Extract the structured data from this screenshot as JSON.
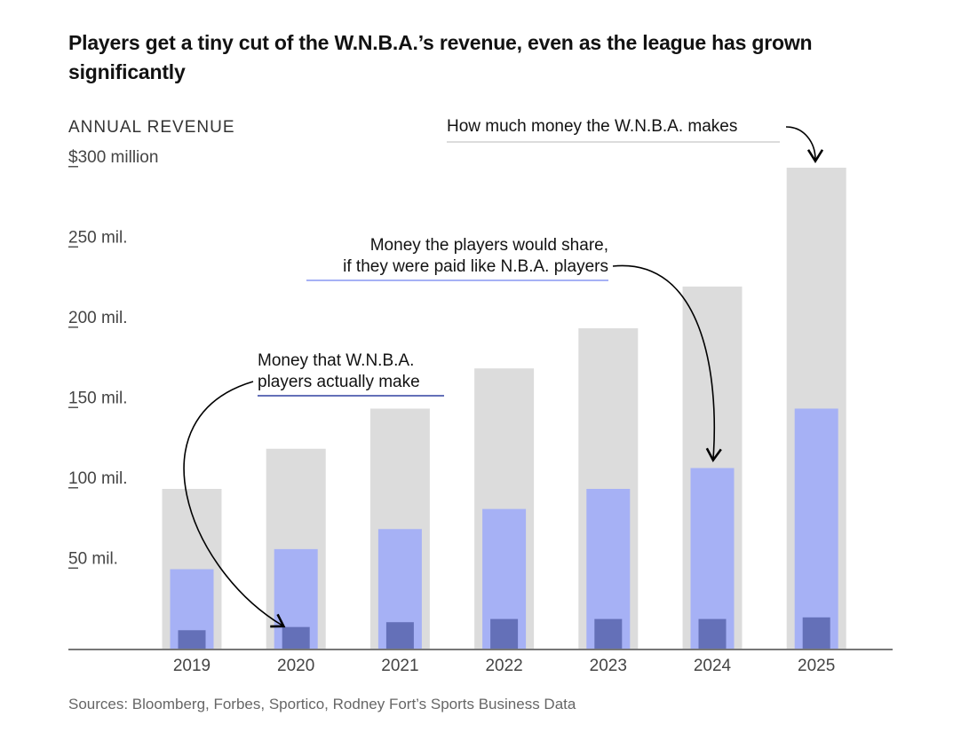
{
  "title": "Players get a tiny cut of the W.N.B.A.’s revenue, even as the league has grown significantly",
  "source": "Sources: Bloomberg, Forbes, Sportico, Rodney Fort’s Sports Business Data",
  "chart_data": {
    "type": "bar",
    "title": "Players get a tiny cut of the W.N.B.A.’s revenue, even as the league has grown significantly",
    "ylabel": "ANNUAL REVENUE",
    "ylim": [
      0,
      300
    ],
    "yticks": [
      {
        "value": 50,
        "label": "50 mil."
      },
      {
        "value": 100,
        "label": "100 mil."
      },
      {
        "value": 150,
        "label": "150 mil."
      },
      {
        "value": 200,
        "label": "200 mil."
      },
      {
        "value": 250,
        "label": "250 mil."
      },
      {
        "value": 300,
        "label": "$300 million"
      }
    ],
    "categories": [
      "2019",
      "2020",
      "2021",
      "2022",
      "2023",
      "2024",
      "2025"
    ],
    "series": [
      {
        "name": "How much money the W.N.B.A. makes",
        "color": "#dcdcdc",
        "values": [
          100,
          125,
          150,
          175,
          200,
          226,
          300
        ]
      },
      {
        "name": "Money the players would share, if they were paid like N.B.A. players",
        "color": "#a6b1f5",
        "values": [
          50,
          62.5,
          75,
          87.5,
          100,
          113,
          150
        ]
      },
      {
        "name": "Money that W.N.B.A. players actually make",
        "color": "#6470b8",
        "values": [
          12,
          14,
          17,
          19,
          19,
          19,
          20
        ]
      }
    ],
    "annotations": {
      "total": "How much money the W.N.B.A. makes",
      "nba_line1": "Money the players would share,",
      "nba_line2": "if they were paid like N.B.A. players",
      "actual_line1": "Money that W.N.B.A.",
      "actual_line2": "players actually make"
    },
    "grid": false
  }
}
